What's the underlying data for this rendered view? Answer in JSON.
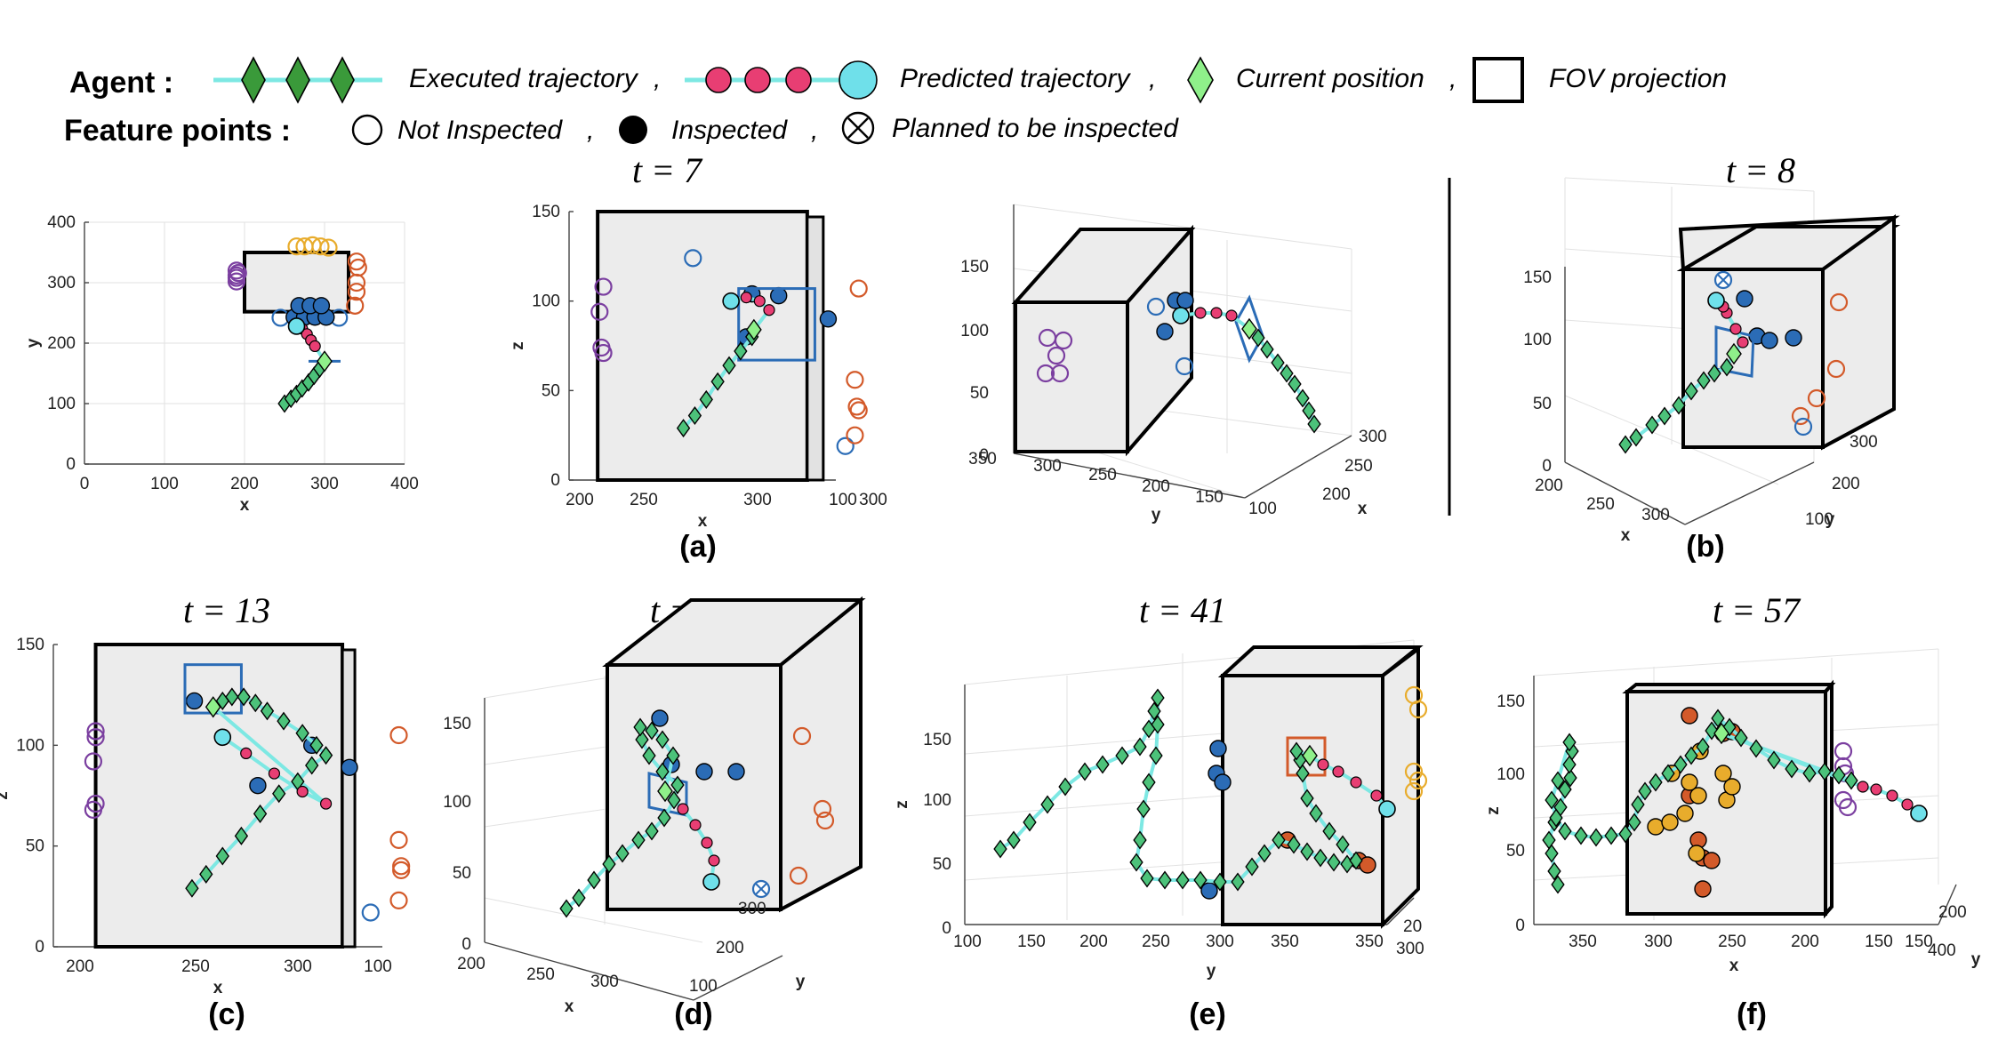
{
  "legend": {
    "agent_label": "Agent :",
    "executed": "Executed trajectory",
    "predicted": "Predicted trajectory",
    "current": "Current position",
    "fov": "FOV projection",
    "feature_label": "Feature points :",
    "not_inspected": "Not Inspected",
    "inspected": "Inspected",
    "planned": "Planned to be inspected"
  },
  "colors": {
    "trajectory_line": "#7de8e3",
    "executed_marker": "#3a9a3a",
    "current_marker": "#8ff08a",
    "predicted_marker": "#e83e73",
    "predicted_end": "#6fe0ea",
    "building_face": "#ececec",
    "purple": "#7b3fa0",
    "blue": "#2b6cb6",
    "orange": "#d35a2a",
    "yellow": "#e8ac2c"
  },
  "chart_data": [
    {
      "panel": "(a) top view",
      "type": "scatter",
      "title": "",
      "xlabel": "x",
      "ylabel": "y",
      "xlim": [
        0,
        400
      ],
      "ylim": [
        0,
        400
      ],
      "xticks": [
        "0",
        "100",
        "200",
        "300",
        "400"
      ],
      "yticks": [
        "0",
        "100",
        "200",
        "300",
        "400"
      ],
      "executed": {
        "x": [
          250,
          258,
          265,
          272,
          280,
          287,
          294,
          300
        ],
        "y": [
          100,
          108,
          116,
          125,
          135,
          146,
          158,
          170
        ]
      },
      "predicted": {
        "x": [
          265,
          272,
          278,
          283,
          288
        ],
        "y": [
          228,
          224,
          215,
          205,
          195
        ]
      },
      "current": {
        "x": [
          300
        ],
        "y": [
          170
        ]
      },
      "features_not_inspected": [
        {
          "color": "purple",
          "x": [
            190,
            190,
            190,
            190,
            192
          ],
          "y": [
            302,
            312,
            320,
            308,
            316
          ]
        },
        {
          "color": "yellow",
          "x": [
            265,
            275,
            285,
            295,
            305
          ],
          "y": [
            360,
            360,
            362,
            360,
            358
          ]
        },
        {
          "color": "orange",
          "x": [
            340,
            342,
            340,
            340,
            338
          ],
          "y": [
            335,
            325,
            300,
            285,
            262
          ]
        },
        {
          "color": "blue",
          "x": [
            245,
            318
          ],
          "y": [
            242,
            242
          ]
        }
      ],
      "features_inspected": [
        {
          "color": "blue",
          "x": [
            262,
            275,
            288,
            302,
            268,
            282,
            296
          ],
          "y": [
            243,
            243,
            243,
            243,
            262,
            262,
            262
          ]
        }
      ],
      "fov_segment": {
        "x": [
          280,
          320
        ],
        "y": [
          170,
          170
        ]
      },
      "building": {
        "x": [
          200,
          330
        ],
        "y": [
          252,
          350
        ]
      }
    },
    {
      "panel": "(a) x-z view",
      "type": "scatter",
      "title": "t = 7",
      "xlabel": "x",
      "ylabel": "z",
      "xlim": [
        190,
        330
      ],
      "ylim": [
        0,
        150
      ],
      "xticks": [
        "200",
        "250",
        "300",
        "100",
        "300"
      ],
      "yticks": [
        "0",
        "50",
        "100",
        "150"
      ],
      "executed": {
        "x": [
          250,
          256,
          262,
          268,
          274,
          280,
          286
        ],
        "y": [
          29,
          36,
          45,
          55,
          64,
          72,
          80
        ]
      },
      "predicted": {
        "x": [
          275,
          283,
          290,
          295
        ],
        "y": [
          100,
          102,
          100,
          95
        ]
      },
      "current": {
        "x": [
          287
        ],
        "y": [
          84
        ]
      },
      "features_not_inspected": [
        {
          "color": "purple",
          "x": [
            208,
            206,
            207,
            208
          ],
          "y": [
            108,
            94,
            74,
            71
          ]
        },
        {
          "color": "blue",
          "x": [
            255,
            335
          ],
          "y": [
            124,
            19
          ]
        },
        {
          "color": "orange",
          "x": [
            342,
            340,
            341,
            342,
            340
          ],
          "y": [
            107,
            56,
            41,
            39,
            25
          ]
        }
      ],
      "features_inspected": [
        {
          "color": "blue",
          "x": [
            286,
            300,
            326,
            283
          ],
          "y": [
            104,
            103,
            90,
            80
          ]
        }
      ],
      "fov": {
        "x": [
          279,
          319
        ],
        "y": [
          67,
          107
        ]
      }
    },
    {
      "panel": "(a) 3D view",
      "type": "scatter",
      "title": "",
      "xlabel": "x",
      "ylabel": "y",
      "zlim": [
        0,
        150
      ],
      "yticks": [
        "350",
        "300",
        "250",
        "200",
        "150",
        "100"
      ],
      "xticks": [
        "200",
        "250",
        "300"
      ],
      "zticks": [
        "0",
        "50",
        "100",
        "150"
      ]
    },
    {
      "panel": "(b) 3D view",
      "type": "scatter",
      "title": "t = 8",
      "xlabel": "x",
      "ylabel": "y",
      "zlim": [
        0,
        150
      ],
      "xticks": [
        "200",
        "250",
        "300"
      ],
      "yticks": [
        "100",
        "200",
        "300"
      ],
      "zticks": [
        "0",
        "50",
        "100",
        "150"
      ]
    },
    {
      "panel": "(c) x-z view",
      "type": "scatter",
      "title": "t = 13",
      "xlabel": "x",
      "ylabel": "z",
      "xlim": [
        190,
        330
      ],
      "ylim": [
        0,
        150
      ],
      "xticks": [
        "200",
        "250",
        "300",
        "100"
      ],
      "yticks": [
        "0",
        "50",
        "100",
        "150"
      ],
      "executed": {
        "x": [
          249,
          255,
          262,
          270,
          278,
          286,
          294,
          300,
          306,
          302,
          296,
          288,
          281,
          276,
          271,
          266,
          262,
          258
        ],
        "y": [
          29,
          36,
          45,
          55,
          66,
          76,
          82,
          90,
          95,
          100,
          106,
          112,
          117,
          121,
          124,
          124,
          122,
          119
        ]
      },
      "predicted": {
        "x": [
          262,
          272,
          284,
          296,
          306
        ],
        "y": [
          104,
          96,
          86,
          77,
          71
        ]
      },
      "current": {
        "x": [
          258
        ],
        "y": [
          119
        ]
      },
      "features_not_inspected": [
        {
          "color": "purple",
          "x": [
            208,
            208,
            207,
            208,
            207
          ],
          "y": [
            107,
            104,
            92,
            71,
            68
          ]
        },
        {
          "color": "blue",
          "x": [
            325
          ],
          "y": [
            17
          ]
        },
        {
          "color": "orange",
          "x": [
            337,
            337,
            338,
            338,
            337
          ],
          "y": [
            105,
            53,
            40,
            38,
            23
          ]
        }
      ],
      "features_inspected": [
        {
          "color": "blue",
          "x": [
            250,
            300,
            316,
            277
          ],
          "y": [
            122,
            100,
            89,
            80
          ]
        }
      ],
      "fov": {
        "x": [
          246,
          270
        ],
        "y": [
          116,
          140
        ]
      }
    },
    {
      "panel": "(d) 3D view",
      "type": "scatter",
      "title": "t = 15",
      "xlabel": "x",
      "ylabel": "y",
      "zlim": [
        0,
        150
      ],
      "xticks": [
        "200",
        "250",
        "300"
      ],
      "yticks": [
        "100",
        "200",
        "300"
      ],
      "zticks": [
        "0",
        "50",
        "100",
        "150"
      ]
    },
    {
      "panel": "(e) 3D view",
      "type": "scatter",
      "title": "t = 41",
      "xlabel": "",
      "ylabel": "y",
      "zlim": [
        0,
        150
      ],
      "yticks": [
        "100",
        "150",
        "200",
        "250",
        "300",
        "350"
      ],
      "xticks": [
        "200",
        "300"
      ],
      "zticks": [
        "0",
        "50",
        "100",
        "150"
      ]
    },
    {
      "panel": "(f) 3D view",
      "type": "scatter",
      "title": "t = 57",
      "xlabel": "x",
      "ylabel": "y",
      "zlim": [
        0,
        150
      ],
      "xticks": [
        "350",
        "300",
        "250",
        "200",
        "150"
      ],
      "yticks": [
        "400",
        "200"
      ],
      "zticks": [
        "0",
        "50",
        "100",
        "150"
      ]
    }
  ],
  "panel_labels": [
    "(a)",
    "(b)",
    "(c)",
    "(d)",
    "(e)",
    "(f)"
  ]
}
